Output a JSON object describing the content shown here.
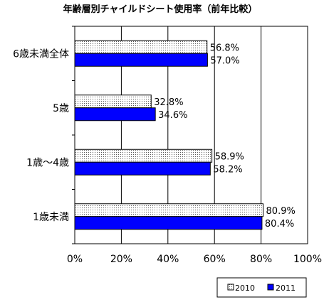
{
  "chart_data": {
    "type": "bar",
    "orientation": "horizontal",
    "title": "年齢層別チャイルドシート使用率（前年比較）",
    "categories": [
      "6歳未満全体",
      "5歳",
      "1歳～4歳",
      "1歳未満"
    ],
    "series": [
      {
        "name": "2010",
        "values": [
          56.8,
          32.8,
          58.9,
          80.9
        ],
        "labels": [
          "56.8%",
          "32.8%",
          "58.9%",
          "80.9%"
        ],
        "color": "#ffffff",
        "pattern": "dotted"
      },
      {
        "name": "2011",
        "values": [
          57.0,
          34.6,
          58.2,
          80.4
        ],
        "labels": [
          "57.0%",
          "34.6%",
          "58.2%",
          "80.4%"
        ],
        "color": "#0000ff"
      }
    ],
    "xlim": [
      0,
      100
    ],
    "x_ticks": [
      0,
      20,
      40,
      60,
      80,
      100
    ],
    "x_tick_labels": [
      "0%",
      "20%",
      "40%",
      "60%",
      "80%",
      "100%"
    ],
    "grid": "vertical",
    "legend_position": "bottom-right"
  }
}
